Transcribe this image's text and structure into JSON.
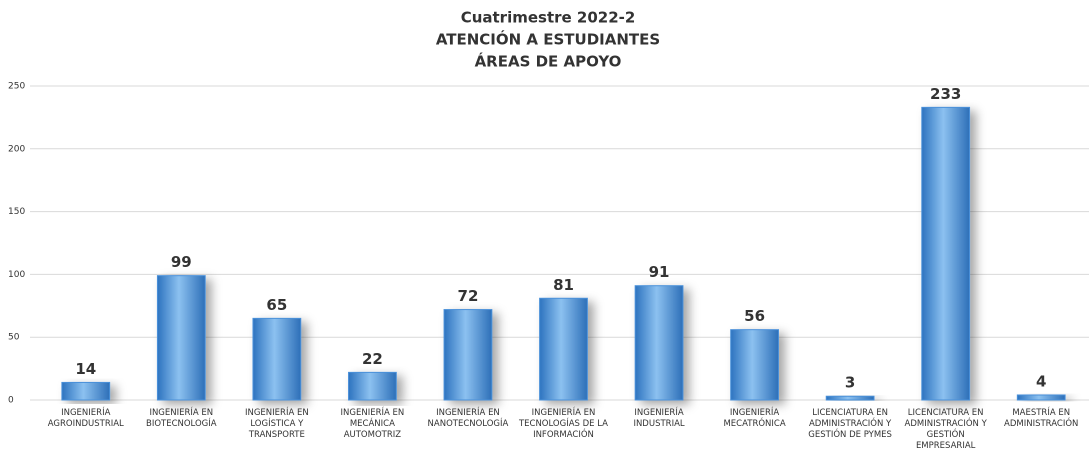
{
  "chart_data": {
    "type": "bar",
    "title": [
      "Cuatrimestre 2022-2",
      "ATENCIÓN A ESTUDIANTES",
      "ÁREAS DE APOYO"
    ],
    "categories": [
      "INGENIERÍA AGROINDUSTRIAL",
      "INGENIERÍA EN BIOTECNOLOGÍA",
      "INGENIERÍA EN LOGÍSTICA Y TRANSPORTE",
      "INGENIERÍA EN MECÁNICA AUTOMOTRIZ",
      "INGENIERÍA EN NANOTECNOLOGÍA",
      "INGENIERÍA EN TECNOLOGÍAS DE LA INFORMACIÓN",
      "INGENIERÍA INDUSTRIAL",
      "INGENIERÍA MECATRÓNICA",
      "LICENCIATURA EN ADMINISTRACIÓN Y GESTIÓN DE PYMES",
      "LICENCIATURA EN ADMINISTRACIÓN Y GESTIÓN EMPRESARIAL",
      "MAESTRÍA EN ADMINISTRACIÓN"
    ],
    "values": [
      14,
      99,
      65,
      22,
      72,
      81,
      91,
      56,
      3,
      233,
      4
    ],
    "color": "#4a90d9",
    "ylim": [
      0,
      250
    ],
    "yticks": [
      0,
      50,
      100,
      150,
      200,
      250
    ],
    "grid": true
  }
}
